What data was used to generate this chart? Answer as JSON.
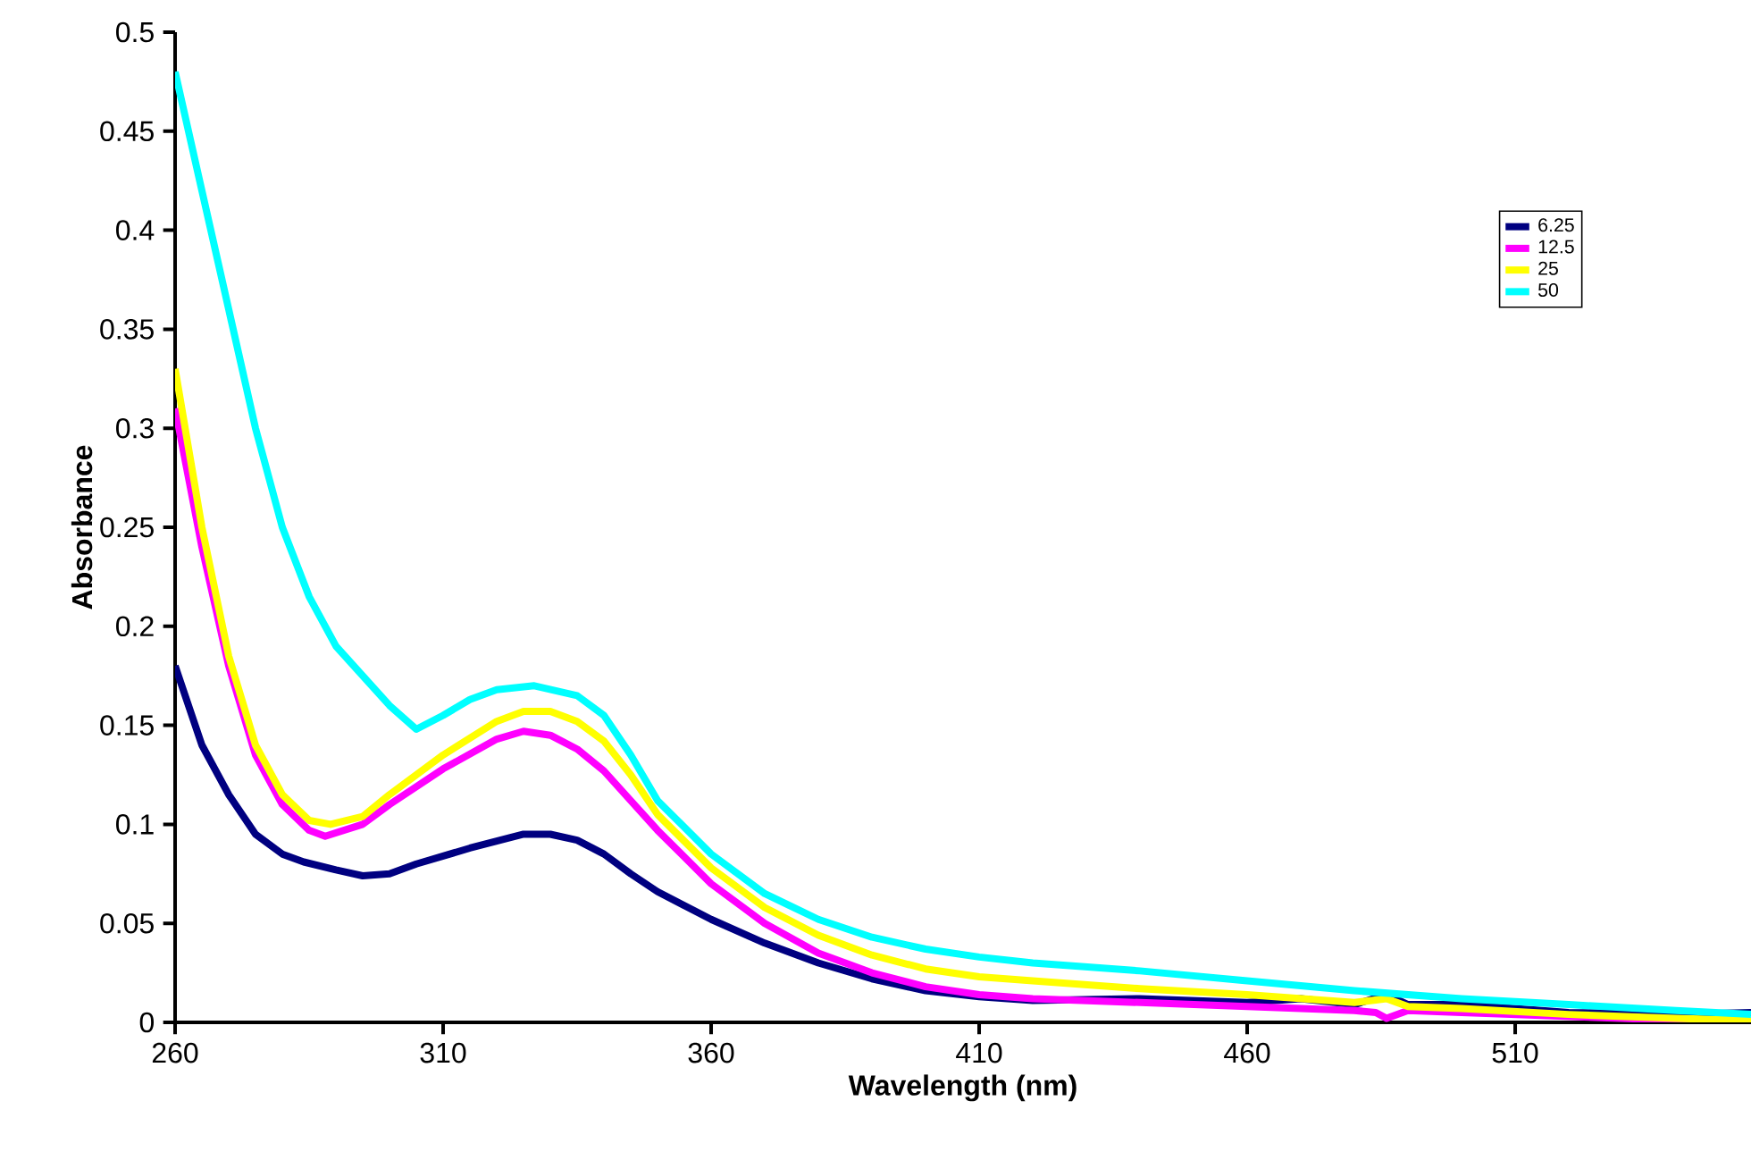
{
  "chart_data": {
    "type": "line",
    "xlabel": "Wavelength (nm)",
    "ylabel": "Absorbance",
    "xlim": [
      260,
      554
    ],
    "xticks": [
      260,
      310,
      360,
      410,
      460,
      510
    ],
    "ylim": [
      0,
      0.5
    ],
    "yticks": [
      0,
      0.05,
      0.1,
      0.15,
      0.2,
      0.25,
      0.3,
      0.35,
      0.4,
      0.45,
      0.5
    ],
    "grid": false,
    "legend": "top right",
    "marker": "none",
    "line_style": "solid",
    "series": [
      {
        "name": "6.25",
        "color": "#000080",
        "x": [
          260,
          265,
          270,
          275,
          280,
          284,
          290,
          295,
          300,
          305,
          315,
          325,
          330,
          335,
          340,
          345,
          350,
          360,
          370,
          380,
          390,
          400,
          410,
          420,
          440,
          460,
          470,
          480,
          486,
          490,
          500,
          520,
          540,
          554
        ],
        "values": [
          0.18,
          0.14,
          0.115,
          0.095,
          0.085,
          0.081,
          0.077,
          0.074,
          0.075,
          0.08,
          0.088,
          0.095,
          0.095,
          0.092,
          0.085,
          0.075,
          0.066,
          0.052,
          0.04,
          0.03,
          0.022,
          0.016,
          0.013,
          0.011,
          0.012,
          0.01,
          0.012,
          0.009,
          0.014,
          0.009,
          0.009,
          0.005,
          0.004,
          0.005
        ]
      },
      {
        "name": "12.5",
        "color": "#ff00ff",
        "x": [
          260,
          265,
          270,
          275,
          280,
          285,
          288,
          295,
          300,
          310,
          320,
          325,
          330,
          335,
          340,
          345,
          350,
          360,
          370,
          380,
          390,
          400,
          410,
          420,
          440,
          460,
          480,
          484,
          486,
          490,
          500,
          520,
          540,
          554
        ],
        "values": [
          0.31,
          0.24,
          0.18,
          0.135,
          0.11,
          0.097,
          0.094,
          0.1,
          0.11,
          0.128,
          0.143,
          0.147,
          0.145,
          0.138,
          0.127,
          0.112,
          0.097,
          0.07,
          0.05,
          0.035,
          0.025,
          0.018,
          0.014,
          0.012,
          0.01,
          0.008,
          0.006,
          0.005,
          0.002,
          0.006,
          0.005,
          0.003,
          0.001,
          0.0
        ]
      },
      {
        "name": "25",
        "color": "#ffff00",
        "x": [
          260,
          265,
          270,
          275,
          280,
          285,
          289,
          295,
          300,
          310,
          320,
          325,
          330,
          335,
          340,
          345,
          350,
          360,
          370,
          380,
          390,
          400,
          410,
          420,
          440,
          460,
          480,
          486,
          490,
          500,
          520,
          540,
          554
        ],
        "values": [
          0.33,
          0.25,
          0.185,
          0.14,
          0.115,
          0.102,
          0.1,
          0.104,
          0.115,
          0.135,
          0.152,
          0.157,
          0.157,
          0.152,
          0.142,
          0.125,
          0.105,
          0.078,
          0.058,
          0.044,
          0.034,
          0.027,
          0.023,
          0.021,
          0.017,
          0.014,
          0.01,
          0.012,
          0.008,
          0.007,
          0.004,
          0.002,
          0.001
        ]
      },
      {
        "name": "50",
        "color": "#00ffff",
        "x": [
          260,
          265,
          270,
          275,
          280,
          285,
          290,
          295,
          300,
          305,
          310,
          315,
          320,
          327,
          335,
          340,
          345,
          350,
          360,
          370,
          380,
          390,
          400,
          410,
          420,
          440,
          460,
          480,
          500,
          520,
          540,
          554
        ],
        "values": [
          0.48,
          0.42,
          0.36,
          0.3,
          0.25,
          0.215,
          0.19,
          0.175,
          0.16,
          0.148,
          0.155,
          0.163,
          0.168,
          0.17,
          0.165,
          0.155,
          0.135,
          0.112,
          0.085,
          0.065,
          0.052,
          0.043,
          0.037,
          0.033,
          0.03,
          0.026,
          0.021,
          0.016,
          0.012,
          0.009,
          0.006,
          0.004
        ]
      }
    ]
  }
}
